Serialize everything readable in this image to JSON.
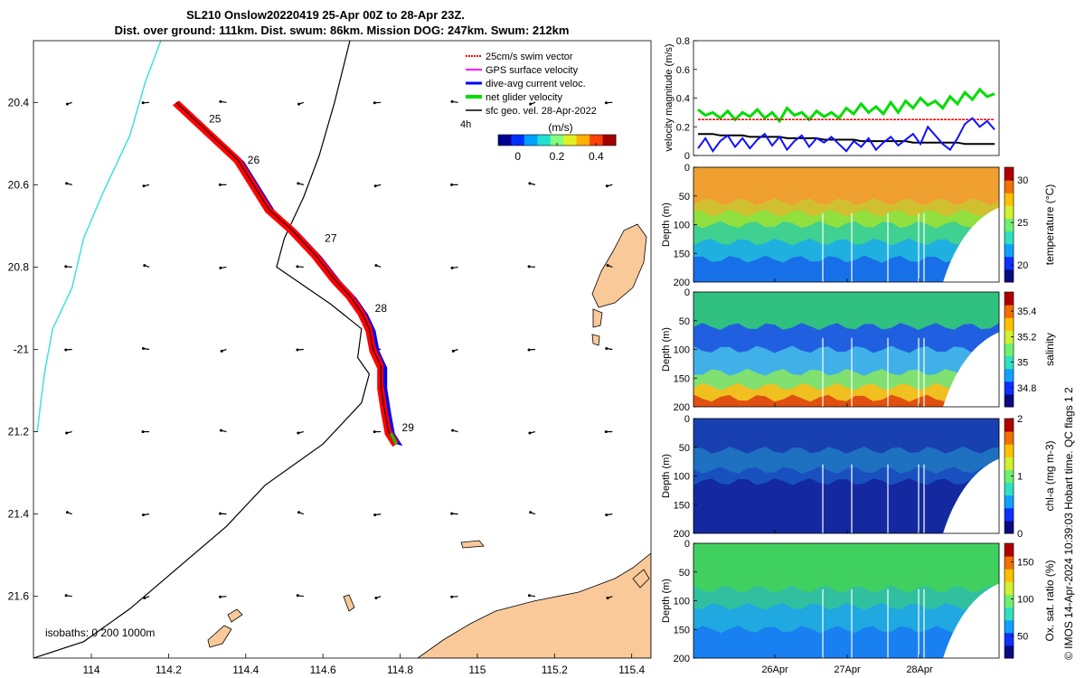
{
  "title_line1": "SL210 Onslow20220419 25-Apr 00Z to 28-Apr 23Z.",
  "title_line2": "Dist. over ground: 111km. Dist. swum: 86km. Mission DOG: 247km. Swum: 212km",
  "credit": "© IMOS 14-Apr-2024 10:39:03 Hobart time. QC flags 1  2",
  "colors": {
    "land": "#f9c99a",
    "coast": "#000000",
    "isobath_200": "#000000",
    "isobath_1000": "#40e0e0",
    "glider_net": "#00cc00",
    "swim_vector": "#ff0000",
    "current": "#0000ff",
    "geo_vel": "#000000",
    "gps_vel": "#ff00ff"
  },
  "chart_data": [
    {
      "type": "map",
      "xlim": [
        113.85,
        115.45
      ],
      "ylim": [
        -21.75,
        -20.25
      ],
      "x_ticks": [
        114,
        114.2,
        114.4,
        114.6,
        114.8,
        115,
        115.2,
        115.4
      ],
      "x_tick_labels": [
        "114",
        "114.2",
        "114.4",
        "114.6",
        "114.8",
        "115",
        "115.2",
        "115.4"
      ],
      "y_ticks": [
        -20.4,
        -20.6,
        -20.8,
        -21,
        -21.2,
        -21.4,
        -21.6
      ],
      "y_tick_labels": [
        "20.4",
        "20.6",
        "20.8",
        "-21",
        "21.2",
        "21.4",
        "21.6"
      ],
      "legend": [
        "25cm/s swim vector",
        "GPS surface velocity",
        "dive-avg current veloc.",
        "net glider velocity",
        "sfc geo. vel. 28-Apr-2022"
      ],
      "legend_placement": "top-right",
      "extra_label": "4h",
      "colorbar_title": "(m/s)",
      "colorbar_ticks": [
        0,
        0.2,
        0.4
      ],
      "colorbar_tick_labels": [
        "0",
        "0.2",
        "0.4"
      ],
      "colorbar_range": [
        -0.1,
        0.5
      ],
      "isobath_label": "isobaths: 0   200  1000m",
      "track_lon": [
        114.22,
        114.3,
        114.38,
        114.42,
        114.46,
        114.52,
        114.58,
        114.63,
        114.67,
        114.7,
        114.72,
        114.73,
        114.75,
        114.75,
        114.76,
        114.77,
        114.79
      ],
      "track_lat": [
        -20.4,
        -20.47,
        -20.54,
        -20.6,
        -20.66,
        -20.71,
        -20.77,
        -20.83,
        -20.87,
        -20.91,
        -20.95,
        -21.0,
        -21.04,
        -21.09,
        -21.15,
        -21.2,
        -21.23
      ],
      "day_markers": [
        {
          "label": "25",
          "lon": 114.3,
          "lat": -20.44
        },
        {
          "label": "26",
          "lon": 114.4,
          "lat": -20.54
        },
        {
          "label": "27",
          "lon": 114.6,
          "lat": -20.73
        },
        {
          "label": "28",
          "lon": 114.73,
          "lat": -20.9
        },
        {
          "label": "29",
          "lon": 114.8,
          "lat": -21.19
        }
      ],
      "isobath_200_lon": [
        114.67,
        114.63,
        114.59,
        114.55,
        114.5,
        114.48,
        114.62,
        114.7,
        114.69,
        114.72,
        114.7,
        114.6,
        114.45,
        114.35,
        114.2,
        114.1,
        113.98,
        113.85
      ],
      "isobath_200_lat": [
        -20.25,
        -20.4,
        -20.53,
        -20.63,
        -20.73,
        -20.8,
        -20.89,
        -20.95,
        -21.02,
        -21.06,
        -21.13,
        -21.23,
        -21.33,
        -21.43,
        -21.55,
        -21.63,
        -21.71,
        -21.75
      ],
      "isobath_1000_lon": [
        114.18,
        114.14,
        114.1,
        114.03,
        113.98,
        113.95,
        113.9,
        113.88,
        113.87,
        113.86
      ],
      "isobath_1000_lat": [
        -20.25,
        -20.35,
        -20.48,
        -20.62,
        -20.73,
        -20.85,
        -20.95,
        -21.05,
        -21.12,
        -21.2
      ],
      "colorbar_colors": [
        "#00008f",
        "#0030ff",
        "#00a0ff",
        "#20e0d0",
        "#80ff80",
        "#e0f020",
        "#ffb000",
        "#ff4000",
        "#a00000"
      ],
      "vector_grid_lon": [
        113.95,
        114.15,
        114.35,
        114.55,
        114.75,
        114.95,
        115.15,
        115.35
      ],
      "vector_grid_lat": [
        -20.4,
        -20.6,
        -20.8,
        -21.0,
        -21.2,
        -21.4,
        -21.6
      ]
    },
    {
      "type": "line",
      "ylabel": "velocity magnitude (m/s)",
      "ylim": [
        0,
        0.8
      ],
      "y_ticks": [
        0,
        0.2,
        0.4,
        0.6,
        0.8
      ],
      "series": [
        {
          "name": "net glider velocity",
          "color": "#00dd00",
          "values": [
            0.32,
            0.28,
            0.3,
            0.26,
            0.31,
            0.25,
            0.3,
            0.27,
            0.32,
            0.26,
            0.3,
            0.24,
            0.33,
            0.28,
            0.3,
            0.25,
            0.31,
            0.27,
            0.3,
            0.26,
            0.33,
            0.29,
            0.36,
            0.3,
            0.34,
            0.29,
            0.37,
            0.3,
            0.38,
            0.33,
            0.4,
            0.35,
            0.38,
            0.33,
            0.41,
            0.36,
            0.44,
            0.39,
            0.46,
            0.41,
            0.43
          ]
        },
        {
          "name": "25cm/s swim vector",
          "color": "#ff0000",
          "values": [
            0.25,
            0.25,
            0.25,
            0.25,
            0.25,
            0.25,
            0.25,
            0.25,
            0.25,
            0.25,
            0.25,
            0.25,
            0.25,
            0.25,
            0.25,
            0.25,
            0.25,
            0.25,
            0.25,
            0.25,
            0.25,
            0.25,
            0.25,
            0.25,
            0.25,
            0.25,
            0.25,
            0.25,
            0.25,
            0.25,
            0.25,
            0.25,
            0.25,
            0.25,
            0.25,
            0.25,
            0.25,
            0.25,
            0.25,
            0.25,
            0.25
          ]
        },
        {
          "name": "sfc geo. vel. 28-Apr-2022",
          "color": "#000000",
          "values": [
            0.15,
            0.15,
            0.15,
            0.14,
            0.14,
            0.14,
            0.14,
            0.13,
            0.13,
            0.13,
            0.13,
            0.13,
            0.12,
            0.12,
            0.12,
            0.12,
            0.12,
            0.11,
            0.11,
            0.11,
            0.11,
            0.11,
            0.1,
            0.1,
            0.1,
            0.1,
            0.1,
            0.1,
            0.1,
            0.09,
            0.09,
            0.09,
            0.09,
            0.09,
            0.09,
            0.09,
            0.08,
            0.08,
            0.08,
            0.08,
            0.08
          ]
        },
        {
          "name": "dive-avg current veloc.",
          "color": "#1010ff",
          "values": [
            0.05,
            0.12,
            0.03,
            0.1,
            0.14,
            0.06,
            0.12,
            0.05,
            0.11,
            0.15,
            0.07,
            0.13,
            0.04,
            0.1,
            0.14,
            0.06,
            0.12,
            0.09,
            0.13,
            0.08,
            0.03,
            0.1,
            0.06,
            0.12,
            0.04,
            0.09,
            0.13,
            0.07,
            0.11,
            0.15,
            0.08,
            0.2,
            0.14,
            0.08,
            0.04,
            0.12,
            0.22,
            0.26,
            0.2,
            0.24,
            0.18
          ]
        }
      ]
    },
    {
      "type": "heatmap",
      "ylabel": "Depth (m)",
      "ylim": [
        200,
        0
      ],
      "y_ticks": [
        0,
        50,
        100,
        150,
        200
      ],
      "colorbar_label": "temperature (°C)",
      "colorbar_ticks": [
        20,
        25,
        30
      ],
      "colorbar_range": [
        18,
        31.5
      ],
      "colorbar_colors": [
        "#0a0a80",
        "#1030ff",
        "#10a0ff",
        "#30e0c0",
        "#70f070",
        "#d0f030",
        "#ffc000",
        "#f07000",
        "#b00000"
      ],
      "bands": [
        [
          0,
          60,
          "#f0a030"
        ],
        [
          60,
          80,
          "#d0c030"
        ],
        [
          80,
          100,
          "#90e040"
        ],
        [
          100,
          130,
          "#40d090"
        ],
        [
          130,
          160,
          "#20b0e0"
        ],
        [
          160,
          200,
          "#1870e8"
        ]
      ]
    },
    {
      "type": "heatmap",
      "ylabel": "Depth (m)",
      "ylim": [
        200,
        0
      ],
      "y_ticks": [
        0,
        50,
        100,
        150,
        200
      ],
      "colorbar_label": "salinity",
      "colorbar_ticks": [
        34.8,
        35,
        35.2,
        35.4
      ],
      "colorbar_range": [
        34.65,
        35.55
      ],
      "colorbar_colors": [
        "#0a0a80",
        "#1030ff",
        "#10a0ff",
        "#30e0c0",
        "#70f070",
        "#d0f030",
        "#ffc000",
        "#f07000",
        "#b00000"
      ],
      "bands": [
        [
          0,
          60,
          "#30c080"
        ],
        [
          60,
          100,
          "#2060e0"
        ],
        [
          100,
          140,
          "#40b0e8"
        ],
        [
          140,
          165,
          "#80e070"
        ],
        [
          165,
          185,
          "#f0c020"
        ],
        [
          185,
          200,
          "#e05010"
        ]
      ]
    },
    {
      "type": "heatmap",
      "ylabel": "Depth (m)",
      "ylim": [
        200,
        0
      ],
      "y_ticks": [
        0,
        50,
        100,
        150,
        200
      ],
      "colorbar_label": "chl-a (mg m-3)",
      "colorbar_ticks": [
        0,
        1,
        2
      ],
      "colorbar_range": [
        0,
        2
      ],
      "colorbar_colors": [
        "#0a0a80",
        "#1030ff",
        "#10a0ff",
        "#30e0c0",
        "#70f070",
        "#d0f030",
        "#ffc000",
        "#f07000",
        "#b00000"
      ],
      "bands": [
        [
          0,
          55,
          "#1840b0"
        ],
        [
          55,
          90,
          "#1e70c0"
        ],
        [
          90,
          110,
          "#1850c0"
        ],
        [
          110,
          200,
          "#1428a0"
        ]
      ]
    },
    {
      "type": "heatmap",
      "ylabel": "Depth (m)",
      "ylim": [
        200,
        0
      ],
      "y_ticks": [
        0,
        50,
        100,
        150,
        200
      ],
      "x_ticks": [
        "26Apr",
        "27Apr",
        "28Apr"
      ],
      "colorbar_label": "Ox. sat. ratio (%)",
      "colorbar_ticks": [
        50,
        100,
        150
      ],
      "colorbar_range": [
        20,
        175
      ],
      "colorbar_colors": [
        "#0a0a80",
        "#1030ff",
        "#10a0ff",
        "#30e0c0",
        "#70f070",
        "#d0f030",
        "#ffc000",
        "#f07000",
        "#b00000"
      ],
      "bands": [
        [
          0,
          80,
          "#40d060"
        ],
        [
          80,
          110,
          "#30c0a0"
        ],
        [
          110,
          150,
          "#20a8e0"
        ],
        [
          150,
          200,
          "#1880f0"
        ]
      ]
    }
  ]
}
